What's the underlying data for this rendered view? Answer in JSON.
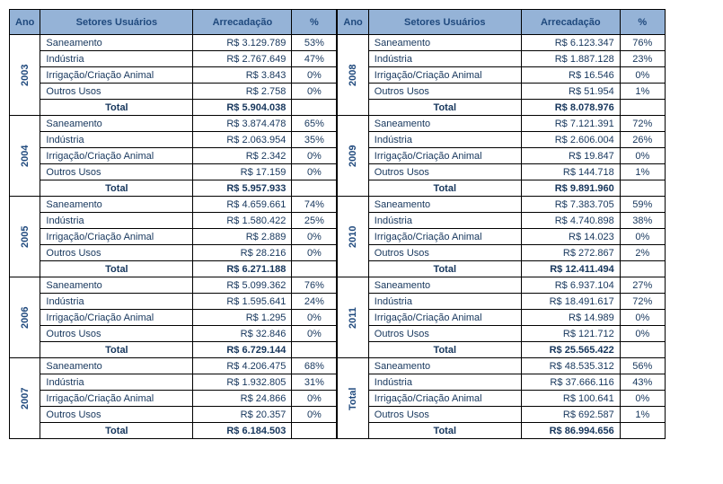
{
  "headers": {
    "ano": "Ano",
    "setores": "Setores Usuários",
    "arrecadacao": "Arrecadação",
    "pct": "%"
  },
  "sectors": {
    "saneamento": "Saneamento",
    "industria": "Indústria",
    "irrigacao": "Irrigação/Criação Animal",
    "outros": "Outros Usos",
    "total": "Total"
  },
  "left": [
    {
      "year": "2003",
      "rows": [
        {
          "s": "saneamento",
          "a": "R$ 3.129.789",
          "p": "53%"
        },
        {
          "s": "industria",
          "a": "R$ 2.767.649",
          "p": "47%"
        },
        {
          "s": "irrigacao",
          "a": "R$ 3.843",
          "p": "0%"
        },
        {
          "s": "outros",
          "a": "R$ 2.758",
          "p": "0%"
        }
      ],
      "total": "R$ 5.904.038"
    },
    {
      "year": "2004",
      "rows": [
        {
          "s": "saneamento",
          "a": "R$ 3.874.478",
          "p": "65%"
        },
        {
          "s": "industria",
          "a": "R$ 2.063.954",
          "p": "35%"
        },
        {
          "s": "irrigacao",
          "a": "R$ 2.342",
          "p": "0%"
        },
        {
          "s": "outros",
          "a": "R$ 17.159",
          "p": "0%"
        }
      ],
      "total": "R$ 5.957.933"
    },
    {
      "year": "2005",
      "rows": [
        {
          "s": "saneamento",
          "a": "R$ 4.659.661",
          "p": "74%"
        },
        {
          "s": "industria",
          "a": "R$ 1.580.422",
          "p": "25%"
        },
        {
          "s": "irrigacao",
          "a": "R$ 2.889",
          "p": "0%"
        },
        {
          "s": "outros",
          "a": "R$ 28.216",
          "p": "0%"
        }
      ],
      "total": "R$ 6.271.188"
    },
    {
      "year": "2006",
      "rows": [
        {
          "s": "saneamento",
          "a": "R$ 5.099.362",
          "p": "76%"
        },
        {
          "s": "industria",
          "a": "R$ 1.595.641",
          "p": "24%"
        },
        {
          "s": "irrigacao",
          "a": "R$ 1.295",
          "p": "0%"
        },
        {
          "s": "outros",
          "a": "R$ 32.846",
          "p": "0%"
        }
      ],
      "total": "R$ 6.729.144"
    },
    {
      "year": "2007",
      "rows": [
        {
          "s": "saneamento",
          "a": "R$ 4.206.475",
          "p": "68%"
        },
        {
          "s": "industria",
          "a": "R$ 1.932.805",
          "p": "31%"
        },
        {
          "s": "irrigacao",
          "a": "R$ 24.866",
          "p": "0%"
        },
        {
          "s": "outros",
          "a": "R$ 20.357",
          "p": "0%"
        }
      ],
      "total": "R$ 6.184.503"
    }
  ],
  "right": [
    {
      "year": "2008",
      "rows": [
        {
          "s": "saneamento",
          "a": "R$ 6.123.347",
          "p": "76%"
        },
        {
          "s": "industria",
          "a": "R$ 1.887.128",
          "p": "23%"
        },
        {
          "s": "irrigacao",
          "a": "R$ 16.546",
          "p": "0%"
        },
        {
          "s": "outros",
          "a": "R$ 51.954",
          "p": "1%"
        }
      ],
      "total": "R$ 8.078.976"
    },
    {
      "year": "2009",
      "rows": [
        {
          "s": "saneamento",
          "a": "R$ 7.121.391",
          "p": "72%"
        },
        {
          "s": "industria",
          "a": "R$ 2.606.004",
          "p": "26%"
        },
        {
          "s": "irrigacao",
          "a": "R$ 19.847",
          "p": "0%"
        },
        {
          "s": "outros",
          "a": "R$ 144.718",
          "p": "1%"
        }
      ],
      "total": "R$ 9.891.960"
    },
    {
      "year": "2010",
      "rows": [
        {
          "s": "saneamento",
          "a": "R$ 7.383.705",
          "p": "59%"
        },
        {
          "s": "industria",
          "a": "R$ 4.740.898",
          "p": "38%"
        },
        {
          "s": "irrigacao",
          "a": "R$ 14.023",
          "p": "0%"
        },
        {
          "s": "outros",
          "a": "R$ 272.867",
          "p": "2%"
        }
      ],
      "total": "R$ 12.411.494"
    },
    {
      "year": "2011",
      "rows": [
        {
          "s": "saneamento",
          "a": "R$ 6.937.104",
          "p": "27%"
        },
        {
          "s": "industria",
          "a": "R$ 18.491.617",
          "p": "72%"
        },
        {
          "s": "irrigacao",
          "a": "R$ 14.989",
          "p": "0%"
        },
        {
          "s": "outros",
          "a": "R$ 121.712",
          "p": "0%"
        }
      ],
      "total": "R$ 25.565.422"
    },
    {
      "year": "Total",
      "rows": [
        {
          "s": "saneamento",
          "a": "R$ 48.535.312",
          "p": "56%"
        },
        {
          "s": "industria",
          "a": "R$ 37.666.116",
          "p": "43%"
        },
        {
          "s": "irrigacao",
          "a": "R$ 100.641",
          "p": "0%"
        },
        {
          "s": "outros",
          "a": "R$ 692.587",
          "p": "1%"
        }
      ],
      "total": "R$ 86.994.656"
    }
  ],
  "style": {
    "type": "table",
    "header_bg": "#95b3d7",
    "header_color": "#1f497d",
    "text_color": "#16365c",
    "border_color": "#000000",
    "font_family": "Arial",
    "font_size_pt": 8.5
  }
}
